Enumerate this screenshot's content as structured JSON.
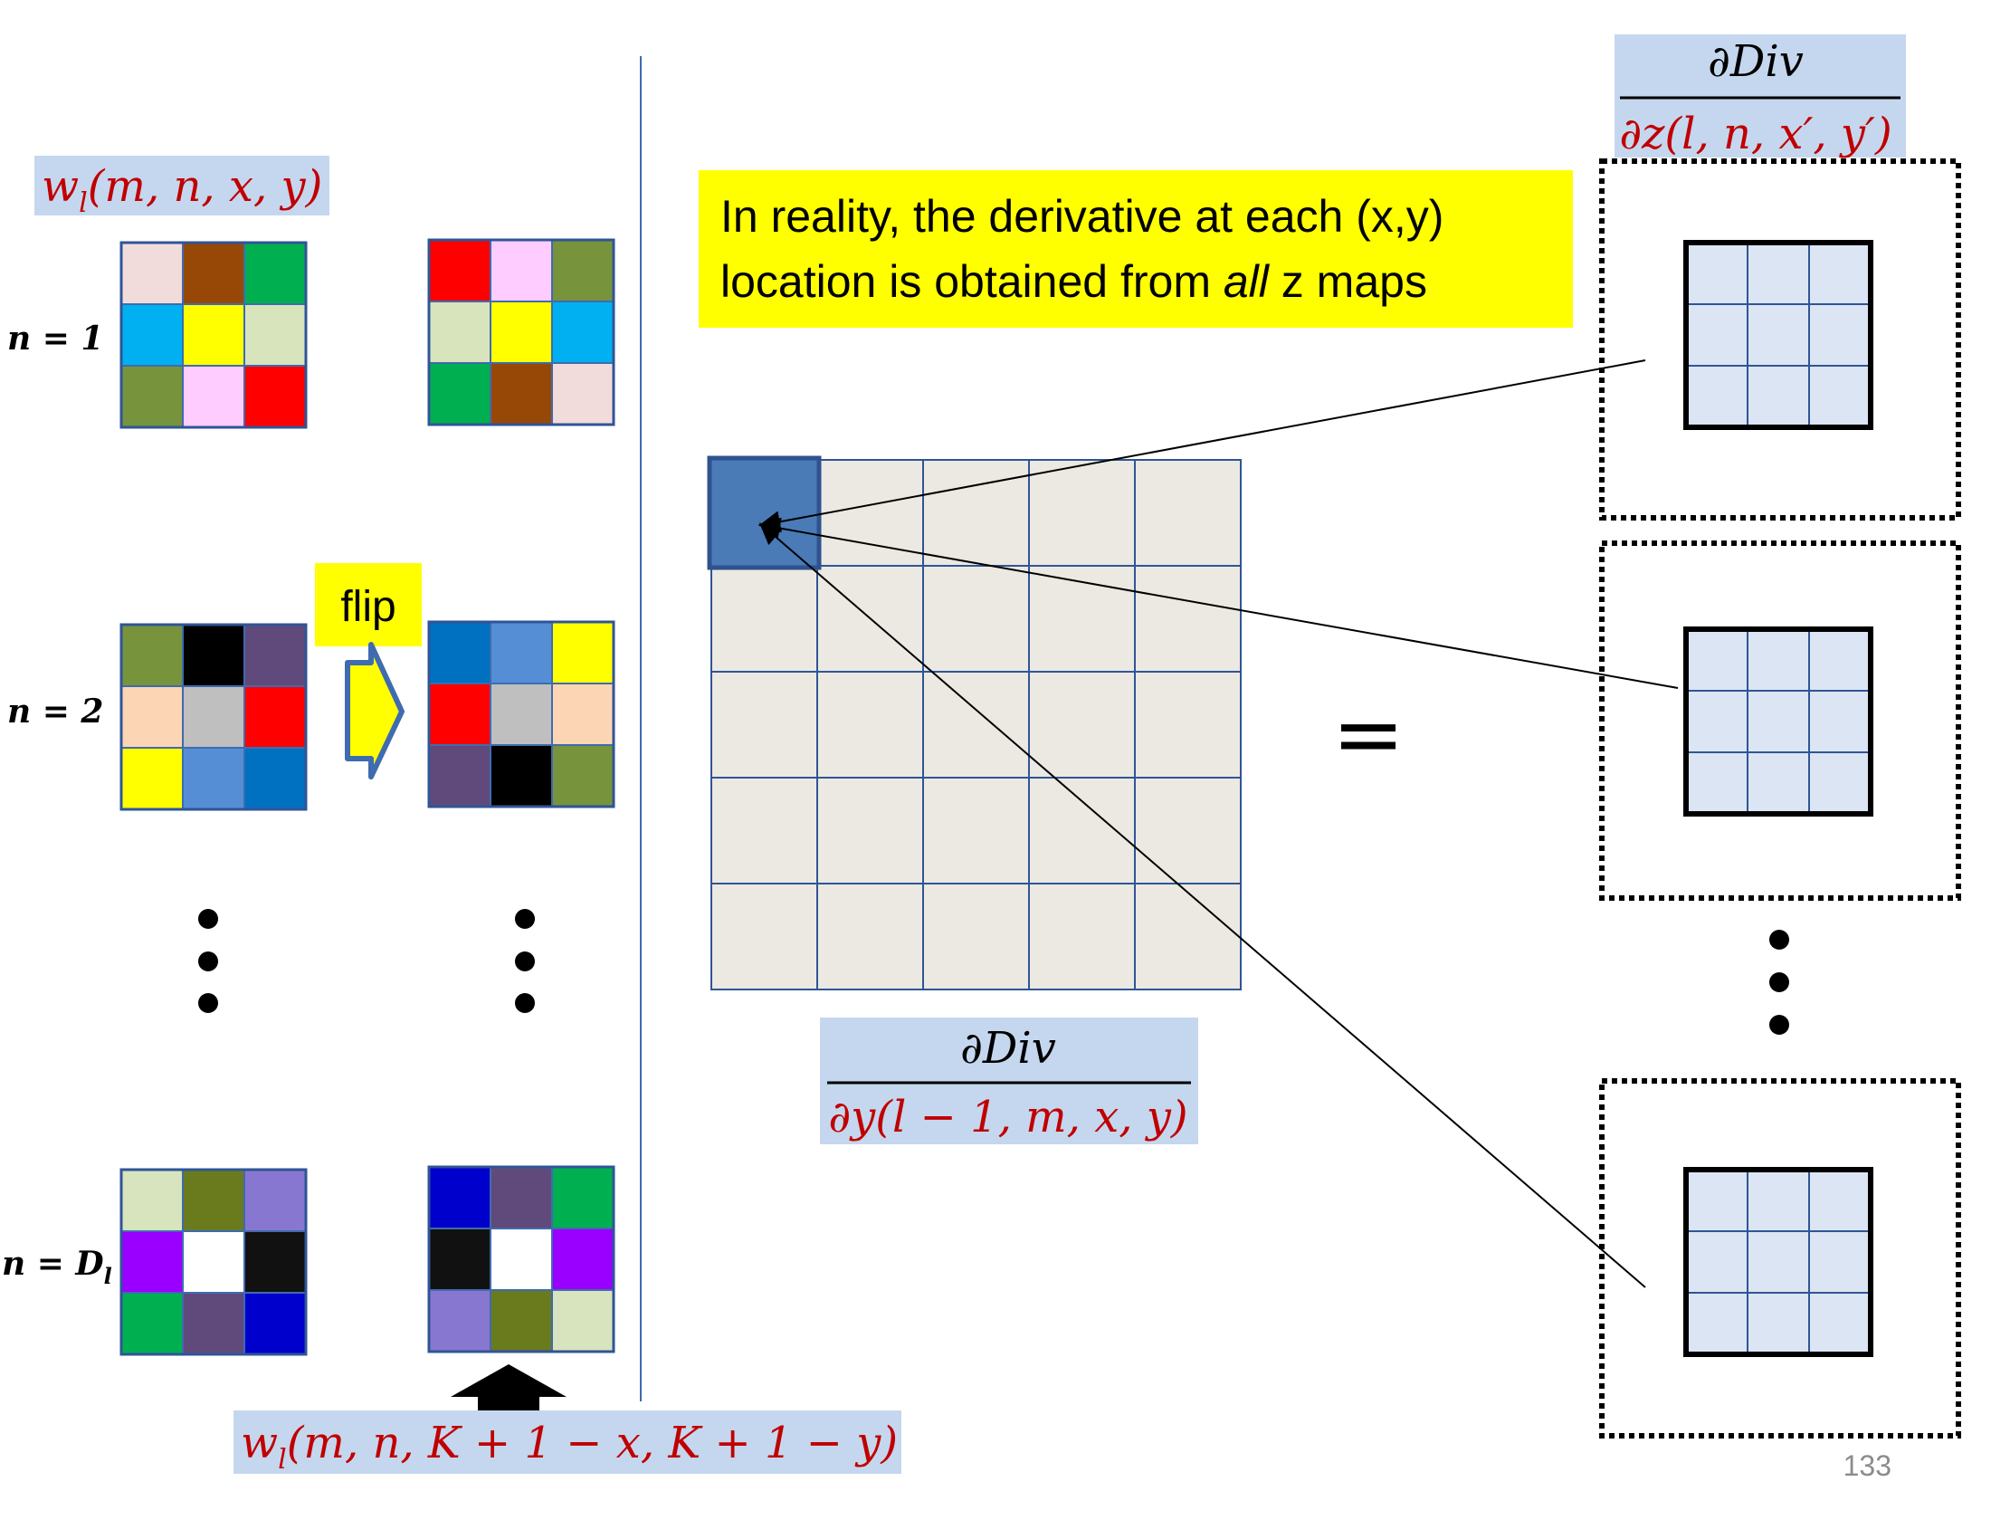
{
  "slide": {
    "weight_label": "w_l(m,n,x,y)",
    "flipped_label": "w_l(m,n,K+1−x,K+1−y)",
    "flip_label": "flip",
    "callout_line1": "In reality, the derivative at each (x,y)",
    "callout_line2_pre": "location is obtained from ",
    "callout_line2_em": "all",
    "callout_line2_post": " z maps",
    "dy_numerator": "∂Div",
    "dy_denominator": "∂y(l − 1, m, x, y)",
    "dz_numerator": "∂Div",
    "dz_denominator": "∂z(l, n, x′, y′)",
    "equals": "=",
    "page_number": "133",
    "row_labels": [
      "n = 1",
      "n = 2",
      "n = D_l"
    ]
  },
  "colors": {
    "label_bg": "#c5d7ee",
    "callout_bg": "#ffff00",
    "grid_fill": "#ece9e2",
    "grid_line": "#2f5597",
    "highlight": "#4a7bb7",
    "zmap_fill": "#dbe5f3",
    "divider": "#3f6bb0",
    "math_red": "#c00000"
  },
  "kernels": {
    "n1": {
      "original": [
        "#f2dcdb",
        "#974806",
        "#00b050",
        "#00b0f0",
        "#ffff00",
        "#d8e4bc",
        "#77933c",
        "#ffccff",
        "#ff0000"
      ],
      "flipped": [
        "#ff0000",
        "#ffccff",
        "#77933c",
        "#d8e4bc",
        "#ffff00",
        "#00b0f0",
        "#00b050",
        "#974806",
        "#f2dcdb"
      ]
    },
    "n2": {
      "original": [
        "#77933c",
        "#000000",
        "#604a7b",
        "#fcd5b5",
        "#bfbfbf",
        "#ff0000",
        "#ffff00",
        "#558ed5",
        "#0070c0"
      ],
      "flipped": [
        "#0070c0",
        "#558ed5",
        "#ffff00",
        "#ff0000",
        "#bfbfbf",
        "#fcd5b5",
        "#604a7b",
        "#000000",
        "#77933c"
      ]
    },
    "nD": {
      "original": [
        "#d7e4bd",
        "#6a7b1e",
        "#8877d0",
        "#9900ff",
        "#ffffff",
        "#111111",
        "#00b050",
        "#604a7b",
        "#0000cc"
      ],
      "flipped": [
        "#0000cc",
        "#604a7b",
        "#00b050",
        "#111111",
        "#ffffff",
        "#9900ff",
        "#8877d0",
        "#6a7b1e",
        "#d7e4bd"
      ]
    }
  }
}
